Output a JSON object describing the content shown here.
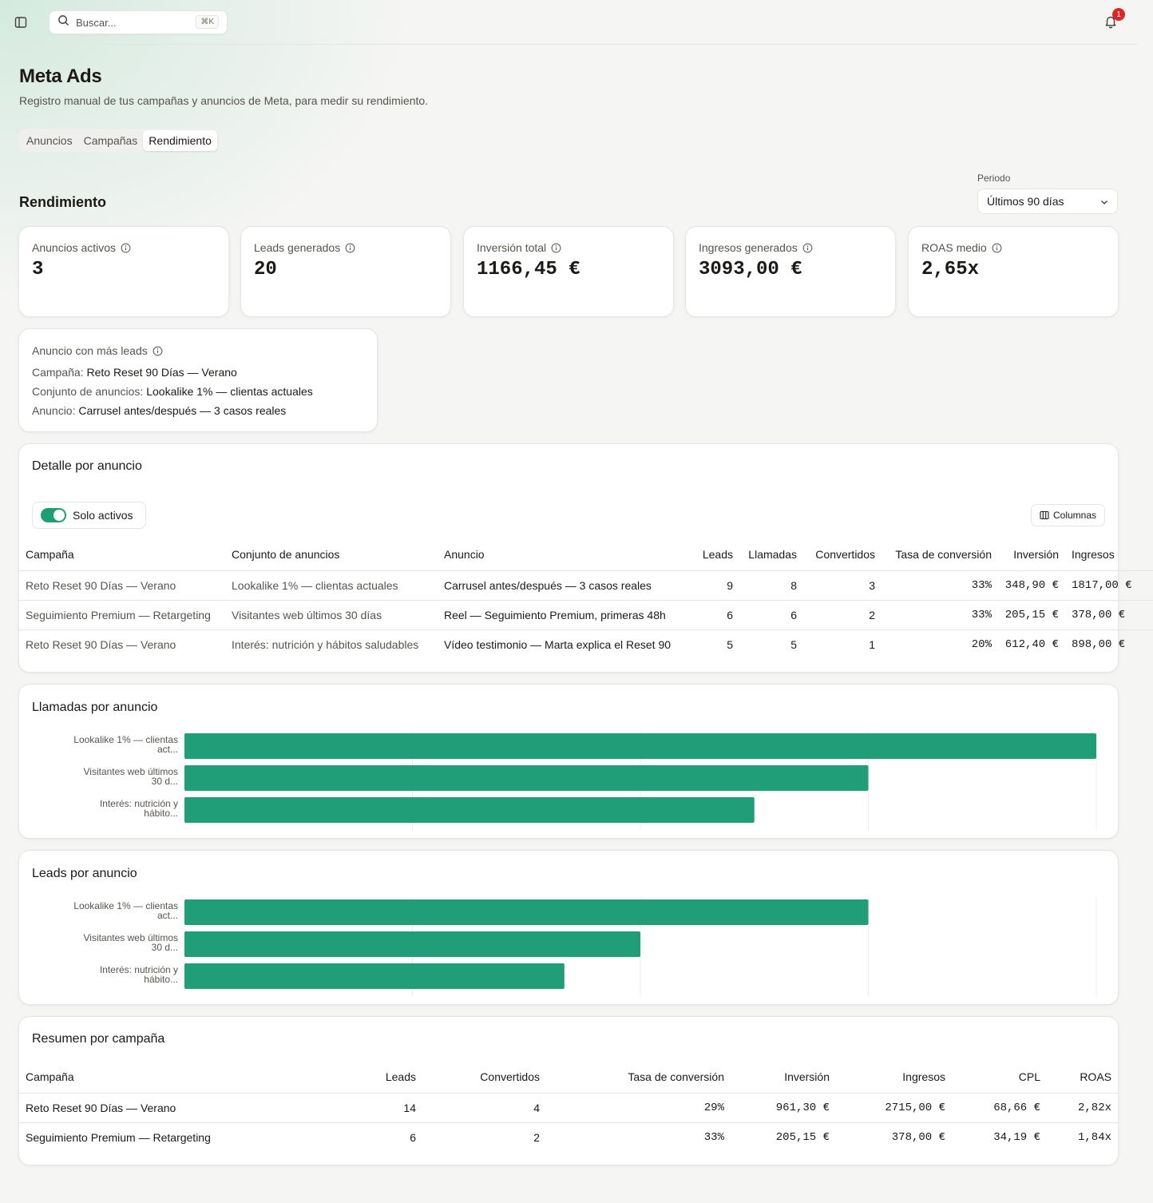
{
  "topbar": {
    "search_placeholder": "Buscar...",
    "search_shortcut": "⌘K",
    "notification_count": "1"
  },
  "header": {
    "title": "Meta Ads",
    "subtitle": "Registro manual de tus campañas y anuncios de Meta, para medir su rendimiento.",
    "tabs": [
      "Anuncios",
      "Campañas",
      "Rendimiento"
    ],
    "active_tab": "Rendimiento"
  },
  "section": {
    "title": "Rendimiento",
    "period_label": "Periodo",
    "period_value": "Últimos 90 días"
  },
  "kpis": [
    {
      "label": "Anuncios activos",
      "value": "3"
    },
    {
      "label": "Leads generados",
      "value": "20"
    },
    {
      "label": "Inversión total",
      "value": "1166,45 €"
    },
    {
      "label": "Ingresos generados",
      "value": "3093,00 €"
    },
    {
      "label": "ROAS medio",
      "value": "2,65x"
    }
  ],
  "top_ad": {
    "title": "Anuncio con más leads",
    "campaign_label": "Campaña:",
    "campaign_value": "Reto Reset 90 Días — Verano",
    "adset_label": "Conjunto de anuncios:",
    "adset_value": "Lookalike 1% — clientas actuales",
    "ad_label": "Anuncio:",
    "ad_value": "Carrusel antes/después — 3 casos reales"
  },
  "detail": {
    "title": "Detalle por anuncio",
    "toggle_label": "Solo activos",
    "columns_button": "Columnas",
    "headers": [
      "Campaña",
      "Conjunto de anuncios",
      "Anuncio",
      "Leads",
      "Llamadas",
      "Convertidos",
      "Tasa de conversión",
      "Inversión",
      "Ingresos"
    ],
    "rows": [
      [
        "Reto Reset 90 Días — Verano",
        "Lookalike 1% — clientas actuales",
        "Carrusel antes/después — 3 casos reales",
        "9",
        "8",
        "3",
        "33%",
        "348,90 €",
        "1817,00 €"
      ],
      [
        "Seguimiento Premium — Retargeting",
        "Visitantes web últimos 30 días",
        "Reel — Seguimiento Premium, primeras 48h",
        "6",
        "6",
        "2",
        "33%",
        "205,15 €",
        "378,00 €"
      ],
      [
        "Reto Reset 90 Días — Verano",
        "Interés: nutrición y hábitos saludables",
        "Vídeo testimonio — Marta explica el Reset 90",
        "5",
        "5",
        "1",
        "20%",
        "612,40 €",
        "898,00 €"
      ]
    ]
  },
  "chart_data": [
    {
      "type": "bar",
      "orientation": "horizontal",
      "title": "Llamadas por anuncio",
      "categories": [
        [
          "Lookalike 1% — clientas",
          "act..."
        ],
        [
          "Visitantes web últimos",
          "30 d..."
        ],
        [
          "Interés: nutrición y",
          "hábito..."
        ]
      ],
      "values": [
        8,
        6,
        5
      ],
      "xlim": [
        0,
        8
      ],
      "grid": true,
      "color": "#1f9e78"
    },
    {
      "type": "bar",
      "orientation": "horizontal",
      "title": "Leads por anuncio",
      "categories": [
        [
          "Lookalike 1% — clientas",
          "act..."
        ],
        [
          "Visitantes web últimos",
          "30 d..."
        ],
        [
          "Interés: nutrición y",
          "hábito..."
        ]
      ],
      "values": [
        9,
        6,
        5
      ],
      "xlim": [
        0,
        12
      ],
      "grid": true,
      "color": "#1f9e78"
    }
  ],
  "summary": {
    "title": "Resumen por campaña",
    "headers": [
      "Campaña",
      "Leads",
      "Convertidos",
      "Tasa de conversión",
      "Inversión",
      "Ingresos",
      "CPL",
      "ROAS"
    ],
    "rows": [
      [
        "Reto Reset 90 Días — Verano",
        "14",
        "4",
        "29%",
        "961,30 €",
        "2715,00 €",
        "68,66 €",
        "2,82x"
      ],
      [
        "Seguimiento Premium — Retargeting",
        "6",
        "2",
        "33%",
        "205,15 €",
        "378,00 €",
        "34,19 €",
        "1,84x"
      ]
    ]
  },
  "colors": {
    "accent": "#1f9e78",
    "badge": "#dc2626"
  }
}
